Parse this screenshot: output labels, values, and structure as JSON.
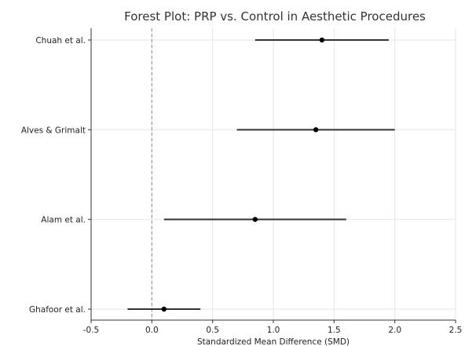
{
  "chart_data": {
    "type": "forest",
    "title": "Forest Plot: PRP vs. Control in Aesthetic Procedures",
    "xlabel": "Standardized Mean Difference (SMD)",
    "ylabel": "",
    "xlim": [
      -0.5,
      2.5
    ],
    "xticks": [
      "-0.5",
      "0.0",
      "0.5",
      "1.0",
      "1.5",
      "2.0",
      "2.5"
    ],
    "reference_line": 0,
    "grid": true,
    "studies": [
      {
        "name": "Chuah et al.",
        "smd": 1.4,
        "ci_low": 0.85,
        "ci_high": 1.95
      },
      {
        "name": "Alves & Grimalt",
        "smd": 1.35,
        "ci_low": 0.7,
        "ci_high": 2.0
      },
      {
        "name": "Alam et al.",
        "smd": 0.85,
        "ci_low": 0.1,
        "ci_high": 1.6
      },
      {
        "name": "Ghafoor et al.",
        "smd": 0.1,
        "ci_low": -0.2,
        "ci_high": 0.4
      }
    ],
    "colors": {
      "marker": "#000000",
      "ci": "#333333",
      "reference": "#999999",
      "grid": "#e6e6e6",
      "axis": "#333333"
    }
  }
}
